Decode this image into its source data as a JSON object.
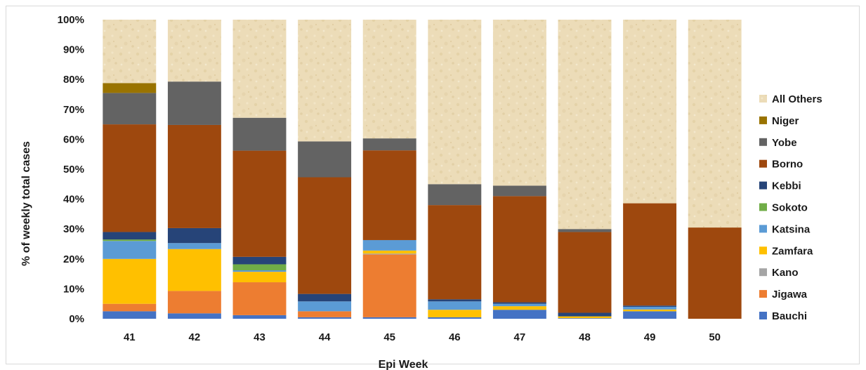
{
  "chart_data": {
    "type": "bar",
    "stacked": true,
    "title": "",
    "xlabel": "Epi Week",
    "ylabel": "% of weekly total cases",
    "ylim": [
      0,
      100
    ],
    "y_ticks": [
      "0%",
      "10%",
      "20%",
      "30%",
      "40%",
      "50%",
      "60%",
      "70%",
      "80%",
      "90%",
      "100%"
    ],
    "categories": [
      "41",
      "42",
      "43",
      "44",
      "45",
      "46",
      "47",
      "48",
      "49",
      "50"
    ],
    "legend_position": "right",
    "grid": false,
    "series": [
      {
        "name": "Bauchi",
        "color": "#4472c4",
        "values": [
          2.5,
          1.8,
          1.2,
          0.5,
          0.5,
          0.5,
          3.0,
          0.2,
          2.5,
          0.0
        ]
      },
      {
        "name": "Jigawa",
        "color": "#ed7d31",
        "values": [
          2.5,
          7.5,
          11.0,
          2.0,
          21.0,
          0.0,
          0.0,
          0.0,
          0.0,
          0.0
        ]
      },
      {
        "name": "Kano",
        "color": "#a5a5a5",
        "values": [
          0.0,
          0.0,
          0.0,
          0.0,
          0.3,
          0.0,
          0.0,
          0.0,
          0.0,
          0.0
        ]
      },
      {
        "name": "Zamfara",
        "color": "#ffc000",
        "values": [
          15.0,
          14.0,
          3.5,
          0.0,
          1.0,
          2.5,
          1.2,
          0.6,
          0.6,
          0.0
        ]
      },
      {
        "name": "Katsina",
        "color": "#5b9bd5",
        "values": [
          6.0,
          2.0,
          0.5,
          3.3,
          3.5,
          2.8,
          0.8,
          0.0,
          0.9,
          0.0
        ]
      },
      {
        "name": "Sokoto",
        "color": "#70ad47",
        "values": [
          0.5,
          0.0,
          2.0,
          0.0,
          0.0,
          0.0,
          0.0,
          0.0,
          0.0,
          0.0
        ]
      },
      {
        "name": "Kebbi",
        "color": "#264478",
        "values": [
          2.5,
          5.0,
          2.5,
          2.5,
          0.0,
          0.7,
          0.5,
          1.2,
          0.4,
          0.0
        ]
      },
      {
        "name": "Borno",
        "color": "#9e480e",
        "values": [
          36.0,
          34.5,
          35.5,
          39.0,
          30.0,
          31.5,
          35.5,
          27.0,
          34.2,
          30.5
        ]
      },
      {
        "name": "Yobe",
        "color": "#636363",
        "values": [
          10.5,
          14.5,
          11.0,
          12.0,
          4.0,
          7.0,
          3.5,
          1.0,
          0.0,
          0.0
        ]
      },
      {
        "name": "Niger",
        "color": "#997300",
        "values": [
          3.3,
          0.0,
          0.0,
          0.0,
          0.0,
          0.0,
          0.0,
          0.0,
          0.0,
          0.0
        ]
      },
      {
        "name": "All Others",
        "color": "#ead9b5",
        "values": [
          21.2,
          20.7,
          32.8,
          40.7,
          39.7,
          55.0,
          55.5,
          70.0,
          61.4,
          69.5
        ]
      }
    ]
  }
}
